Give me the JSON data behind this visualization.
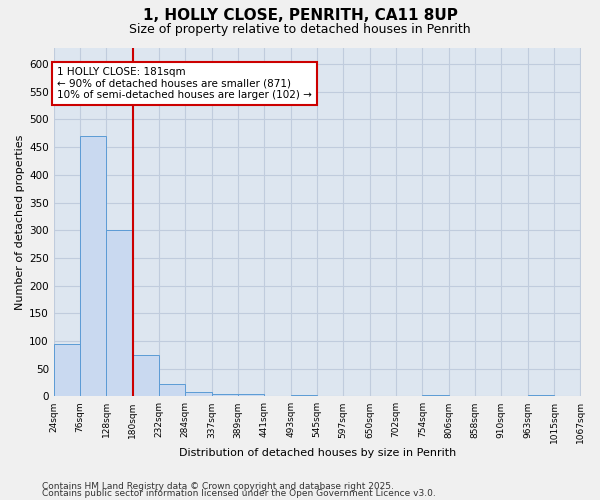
{
  "title": "1, HOLLY CLOSE, PENRITH, CA11 8UP",
  "subtitle": "Size of property relative to detached houses in Penrith",
  "xlabel": "Distribution of detached houses by size in Penrith",
  "ylabel": "Number of detached properties",
  "bin_labels": [
    "24sqm",
    "76sqm",
    "128sqm",
    "180sqm",
    "232sqm",
    "284sqm",
    "337sqm",
    "389sqm",
    "441sqm",
    "493sqm",
    "545sqm",
    "597sqm",
    "650sqm",
    "702sqm",
    "754sqm",
    "806sqm",
    "858sqm",
    "910sqm",
    "963sqm",
    "1015sqm",
    "1067sqm"
  ],
  "bin_edges": [
    24,
    76,
    128,
    180,
    232,
    284,
    337,
    389,
    441,
    493,
    545,
    597,
    650,
    702,
    754,
    806,
    858,
    910,
    963,
    1015,
    1067
  ],
  "bar_values": [
    95,
    470,
    300,
    75,
    22,
    8,
    5,
    5,
    0,
    2,
    0,
    0,
    0,
    0,
    2,
    0,
    0,
    0,
    2,
    0
  ],
  "bar_color": "#c9d9f0",
  "bar_edge_color": "#5b9bd5",
  "grid_color": "#c0ccdd",
  "background_color": "#dde6f0",
  "fig_background_color": "#f0f0f0",
  "vline_x": 180,
  "vline_color": "#cc0000",
  "annotation_text": "1 HOLLY CLOSE: 181sqm\n← 90% of detached houses are smaller (871)\n10% of semi-detached houses are larger (102) →",
  "annotation_box_color": "#ffffff",
  "annotation_box_edge": "#cc0000",
  "ylim": [
    0,
    630
  ],
  "yticks": [
    0,
    50,
    100,
    150,
    200,
    250,
    300,
    350,
    400,
    450,
    500,
    550,
    600
  ],
  "footer1": "Contains HM Land Registry data © Crown copyright and database right 2025.",
  "footer2": "Contains public sector information licensed under the Open Government Licence v3.0."
}
